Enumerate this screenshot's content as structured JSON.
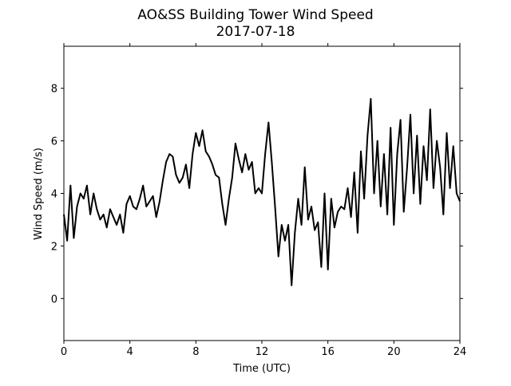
{
  "chart_data": {
    "type": "line",
    "title": "AO&SS Building Tower Wind Speed",
    "subtitle": "2017-07-18",
    "x_label": "Time (UTC)",
    "y_label": "Wind Speed (m/s)",
    "x": [
      0,
      0.2,
      0.4,
      0.6,
      0.8,
      1,
      1.2,
      1.4,
      1.6,
      1.8,
      2,
      2.2,
      2.4,
      2.6,
      2.8,
      3,
      3.2,
      3.4,
      3.6,
      3.8,
      4,
      4.2,
      4.4,
      4.6,
      4.8,
      5,
      5.2,
      5.4,
      5.6,
      5.8,
      6,
      6.2,
      6.4,
      6.6,
      6.8,
      7,
      7.2,
      7.4,
      7.6,
      7.8,
      8,
      8.2,
      8.4,
      8.6,
      8.8,
      9,
      9.2,
      9.4,
      9.6,
      9.8,
      10,
      10.2,
      10.4,
      10.6,
      10.8,
      11,
      11.2,
      11.4,
      11.6,
      11.8,
      12,
      12.2,
      12.4,
      12.6,
      12.8,
      13,
      13.2,
      13.4,
      13.6,
      13.8,
      14,
      14.2,
      14.4,
      14.6,
      14.8,
      15,
      15.2,
      15.4,
      15.6,
      15.8,
      16,
      16.2,
      16.4,
      16.6,
      16.8,
      17,
      17.2,
      17.4,
      17.6,
      17.8,
      18,
      18.2,
      18.4,
      18.6,
      18.8,
      19,
      19.2,
      19.4,
      19.6,
      19.8,
      20,
      20.2,
      20.4,
      20.6,
      20.8,
      21,
      21.2,
      21.4,
      21.6,
      21.8,
      22,
      22.2,
      22.4,
      22.6,
      22.8,
      23,
      23.2,
      23.4,
      23.6,
      23.8,
      24
    ],
    "series": [
      {
        "color": "#000000",
        "values": [
          3.2,
          2.2,
          4.3,
          2.3,
          3.5,
          4.0,
          3.8,
          4.3,
          3.2,
          4.0,
          3.4,
          3.0,
          3.2,
          2.7,
          3.4,
          3.1,
          2.8,
          3.2,
          2.5,
          3.6,
          3.9,
          3.5,
          3.4,
          3.8,
          4.3,
          3.5,
          3.7,
          3.9,
          3.1,
          3.7,
          4.5,
          5.2,
          5.5,
          5.4,
          4.7,
          4.4,
          4.6,
          5.1,
          4.2,
          5.5,
          6.3,
          5.8,
          6.4,
          5.6,
          5.4,
          5.1,
          4.7,
          4.6,
          3.6,
          2.8,
          3.8,
          4.6,
          5.9,
          5.3,
          4.8,
          5.5,
          4.9,
          5.2,
          4.0,
          4.2,
          4.0,
          5.5,
          6.7,
          5.2,
          3.5,
          1.6,
          2.8,
          2.2,
          2.8,
          0.5,
          2.5,
          3.8,
          2.8,
          5.0,
          3.0,
          3.5,
          2.6,
          2.9,
          1.2,
          4.0,
          1.1,
          3.8,
          2.7,
          3.3,
          3.5,
          3.4,
          4.2,
          3.1,
          4.8,
          2.5,
          5.6,
          3.8,
          6.2,
          7.6,
          4.0,
          6.0,
          3.5,
          5.5,
          3.2,
          6.5,
          2.8,
          5.5,
          6.8,
          3.3,
          5.0,
          7.0,
          4.0,
          6.2,
          3.6,
          5.8,
          4.5,
          7.2,
          4.2,
          6.0,
          5.0,
          3.2,
          6.3,
          4.2,
          5.8,
          4.0,
          3.7
        ]
      }
    ],
    "xlim": [
      0,
      24
    ],
    "xticks": [
      0,
      4,
      8,
      12,
      16,
      20,
      24
    ],
    "ylim": [
      -1.6,
      9.6
    ],
    "yticks": [
      0,
      2,
      4,
      6,
      8
    ]
  }
}
